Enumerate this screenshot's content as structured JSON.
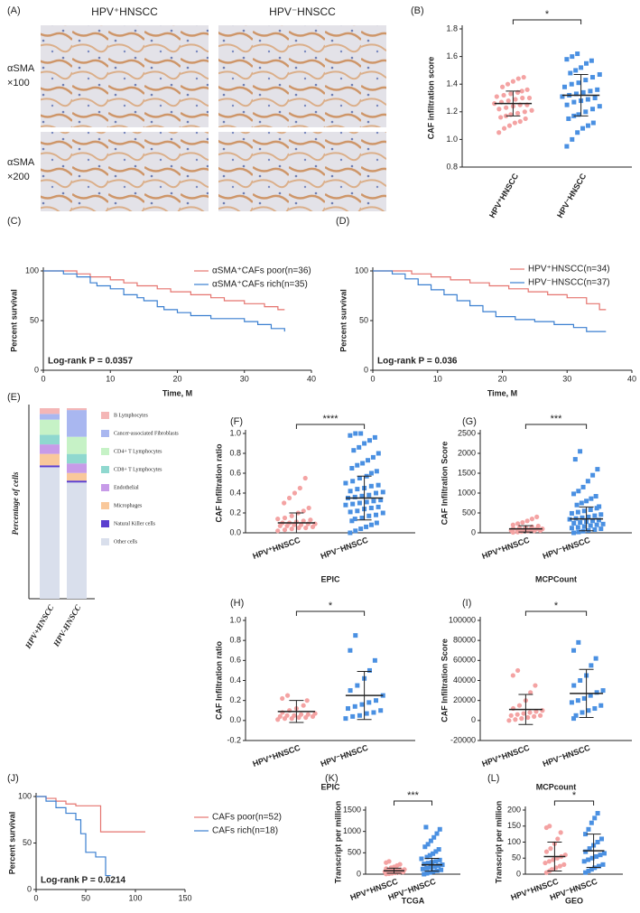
{
  "panel_a": {
    "label": "(A)",
    "columns": [
      "HPV⁺HNSCC",
      "HPV⁻HNSCC"
    ],
    "rows": [
      [
        "αSMA",
        "×100"
      ],
      [
        "αSMA",
        "×200"
      ]
    ]
  },
  "chart_data": [
    {
      "type": "dotplot",
      "panel_label": "(B)",
      "ylabel": "CAF infiltration score",
      "categories": [
        "HPV⁺HNSCC",
        "HPV⁻HNSCC"
      ],
      "significance": "*",
      "ylim": [
        0.8,
        1.8
      ],
      "yticks": [
        0.8,
        {
          "value": 1,
          "label": "1.0"
        },
        1.2,
        1.4,
        1.6,
        1.8
      ],
      "groups": [
        {
          "color": "#f4a3a3",
          "mean": 1.26,
          "sd": 0.09,
          "values": [
            1.05,
            1.08,
            1.1,
            1.12,
            1.13,
            1.15,
            1.16,
            1.17,
            1.18,
            1.19,
            1.2,
            1.21,
            1.22,
            1.23,
            1.24,
            1.25,
            1.25,
            1.26,
            1.27,
            1.28,
            1.29,
            1.3,
            1.3,
            1.31,
            1.32,
            1.33,
            1.34,
            1.35,
            1.36,
            1.38,
            1.4,
            1.42,
            1.44,
            1.45
          ]
        },
        {
          "color": "#4a90e2",
          "mean": 1.32,
          "sd": 0.15,
          "values": [
            0.95,
            1.0,
            1.05,
            1.08,
            1.1,
            1.12,
            1.15,
            1.17,
            1.18,
            1.2,
            1.22,
            1.24,
            1.25,
            1.27,
            1.28,
            1.29,
            1.3,
            1.31,
            1.32,
            1.33,
            1.34,
            1.35,
            1.36,
            1.38,
            1.4,
            1.41,
            1.43,
            1.45,
            1.47,
            1.48,
            1.5,
            1.52,
            1.55,
            1.57,
            1.58,
            1.6,
            1.62
          ]
        }
      ]
    },
    {
      "type": "km",
      "panel_label": "(C)",
      "xlabel": "Time, M",
      "ylabel": "Percent survival",
      "annotation": "Log-rank P = 0.0357",
      "xlim": [
        0,
        40
      ],
      "xticks": [
        0,
        10,
        20,
        30,
        40
      ],
      "ylim": [
        0,
        100
      ],
      "yticks": [
        0,
        50,
        100
      ],
      "series": [
        {
          "name": "αSMA⁺CAFs poor(n=36)",
          "color": "#e5746f",
          "x": [
            0,
            5,
            7,
            10,
            12,
            14,
            17,
            19,
            22,
            25,
            27,
            30,
            33,
            35,
            36
          ],
          "values": [
            100,
            97,
            94,
            91,
            88,
            85,
            82,
            79,
            76,
            73,
            70,
            67,
            64,
            61,
            61
          ]
        },
        {
          "name": "αSMA⁺CAFs rich(n=35)",
          "color": "#3a7fd0",
          "x": [
            0,
            3,
            5,
            7,
            8,
            10,
            12,
            14,
            15,
            17,
            18,
            20,
            22,
            25,
            28,
            30,
            32,
            34,
            36
          ],
          "values": [
            100,
            97,
            94,
            88,
            85,
            82,
            76,
            73,
            70,
            64,
            61,
            58,
            55,
            52,
            52,
            49,
            46,
            42,
            39
          ]
        }
      ]
    },
    {
      "type": "km",
      "panel_label": "(D)",
      "xlabel": "Time, M",
      "ylabel": "Percent survival",
      "annotation": "Log-rank P = 0.036",
      "xlim": [
        0,
        40
      ],
      "xticks": [
        0,
        10,
        20,
        30,
        40
      ],
      "ylim": [
        0,
        100
      ],
      "yticks": [
        0,
        50,
        100
      ],
      "series": [
        {
          "name": "HPV⁺HNSCC(n=34)",
          "color": "#e5746f",
          "x": [
            0,
            6,
            9,
            12,
            15,
            18,
            21,
            24,
            27,
            30,
            33,
            35,
            36
          ],
          "values": [
            100,
            97,
            94,
            91,
            88,
            85,
            82,
            79,
            76,
            73,
            67,
            61,
            61
          ]
        },
        {
          "name": "HPV⁻HNSCC(n=37)",
          "color": "#3a7fd0",
          "x": [
            0,
            3,
            5,
            7,
            9,
            11,
            13,
            15,
            17,
            19,
            22,
            25,
            28,
            31,
            33,
            36
          ],
          "values": [
            100,
            97,
            92,
            86,
            81,
            76,
            70,
            65,
            59,
            54,
            51,
            49,
            46,
            43,
            39,
            39
          ]
        }
      ]
    },
    {
      "type": "stacked",
      "panel_label": "(E)",
      "ylabel": "Percentage of cells",
      "categories": [
        "HPV+HNSCC",
        "HPV-HNSCC"
      ],
      "ylim": [
        0,
        100
      ],
      "series": [
        {
          "name": "B Lymphocytes",
          "color": "#f4b6b6",
          "values": [
            3,
            1
          ]
        },
        {
          "name": "Cancer-associated Fibroblasts",
          "color": "#a9b7f0",
          "values": [
            3,
            14
          ]
        },
        {
          "name": "CD4+ T Lymphocytes",
          "color": "#c6f2c6",
          "values": [
            8,
            9
          ]
        },
        {
          "name": "CD8+ T Lymphocytes",
          "color": "#8fd8cf",
          "values": [
            5,
            5
          ]
        },
        {
          "name": "Endothelial",
          "color": "#c79be8",
          "values": [
            5,
            5
          ]
        },
        {
          "name": "Microphages",
          "color": "#f9c89b",
          "values": [
            6,
            4
          ]
        },
        {
          "name": "Natural Killer cells",
          "color": "#5b3fcf",
          "values": [
            1,
            1
          ]
        },
        {
          "name": "Other cells",
          "color": "#d9dfec",
          "values": [
            69,
            61
          ]
        }
      ]
    },
    {
      "type": "dotplot",
      "panel_label": "(F)",
      "xlabel": "EPIC",
      "ylabel": "CAF Infiltration ratio",
      "categories": [
        "HPV⁺HNSCC",
        "HPV⁻HNSCC"
      ],
      "significance": "****",
      "ylim": [
        0,
        1
      ],
      "yticks": [
        {
          "value": 0,
          "label": "0.0"
        },
        0.2,
        0.4,
        0.6,
        0.8,
        {
          "value": 1,
          "label": "1.0"
        }
      ],
      "groups": [
        {
          "color": "#f4a3a3",
          "mean": 0.1,
          "sd": 0.1,
          "values": [
            0.02,
            0.03,
            0.04,
            0.05,
            0.05,
            0.06,
            0.07,
            0.07,
            0.08,
            0.08,
            0.09,
            0.09,
            0.1,
            0.1,
            0.11,
            0.12,
            0.13,
            0.14,
            0.15,
            0.17,
            0.2,
            0.22,
            0.25,
            0.3,
            0.35,
            0.4,
            0.45,
            0.55
          ]
        },
        {
          "color": "#4a90e2",
          "mean": 0.35,
          "sd": 0.22,
          "values": [
            0.0,
            0.02,
            0.04,
            0.06,
            0.08,
            0.1,
            0.12,
            0.14,
            0.15,
            0.17,
            0.18,
            0.2,
            0.21,
            0.22,
            0.24,
            0.25,
            0.26,
            0.28,
            0.29,
            0.3,
            0.31,
            0.32,
            0.33,
            0.35,
            0.36,
            0.37,
            0.38,
            0.4,
            0.41,
            0.42,
            0.44,
            0.45,
            0.47,
            0.48,
            0.5,
            0.52,
            0.55,
            0.57,
            0.6,
            0.62,
            0.65,
            0.68,
            0.7,
            0.73,
            0.76,
            0.8,
            0.83,
            0.86,
            0.9,
            0.93,
            0.96,
            0.98,
            1.0,
            1.0
          ]
        }
      ]
    },
    {
      "type": "dotplot",
      "panel_label": "(G)",
      "xlabel": "MCPCount",
      "ylabel": "CAF Infiltration Score",
      "categories": [
        "HPV⁺HNSCC",
        "HPV⁻HNSCC"
      ],
      "significance": "***",
      "ylim": [
        0,
        2500
      ],
      "yticks": [
        0,
        500,
        1000,
        1500,
        2000,
        2500
      ],
      "groups": [
        {
          "color": "#f4a3a3",
          "mean": 100,
          "sd": 80,
          "values": [
            10,
            20,
            30,
            40,
            50,
            55,
            60,
            70,
            75,
            80,
            90,
            100,
            110,
            120,
            130,
            150,
            170,
            200,
            230,
            260,
            300,
            350,
            400
          ]
        },
        {
          "color": "#4a90e2",
          "mean": 350,
          "sd": 300,
          "values": [
            0,
            20,
            40,
            60,
            80,
            100,
            120,
            140,
            160,
            180,
            200,
            220,
            240,
            260,
            280,
            300,
            320,
            340,
            360,
            380,
            400,
            430,
            460,
            490,
            520,
            550,
            580,
            620,
            660,
            700,
            750,
            800,
            860,
            920,
            980,
            1050,
            1150,
            1300,
            1450,
            1600,
            1850,
            2050
          ]
        }
      ]
    },
    {
      "type": "dotplot",
      "panel_label": "(H)",
      "xlabel": "EPIC",
      "ylabel": "CAF Infiltration ratio",
      "categories": [
        "HPV⁺HNSCC",
        "HPV⁻HNSCC"
      ],
      "significance": "*",
      "ylim": [
        -0.2,
        1
      ],
      "yticks": [
        -0.2,
        {
          "value": 0,
          "label": "0.0"
        },
        0.2,
        0.4,
        0.6,
        0.8,
        {
          "value": 1,
          "label": "1.0"
        }
      ],
      "groups": [
        {
          "color": "#f4a3a3",
          "mean": 0.09,
          "sd": 0.11,
          "values": [
            0.01,
            0.02,
            0.02,
            0.03,
            0.03,
            0.04,
            0.04,
            0.05,
            0.05,
            0.06,
            0.06,
            0.07,
            0.08,
            0.1,
            0.12,
            0.15,
            0.2,
            0.22,
            0.25
          ]
        },
        {
          "color": "#4a90e2",
          "mean": 0.25,
          "sd": 0.24,
          "values": [
            0.02,
            0.04,
            0.05,
            0.07,
            0.08,
            0.1,
            0.12,
            0.14,
            0.16,
            0.18,
            0.2,
            0.25,
            0.3,
            0.35,
            0.42,
            0.5,
            0.6,
            0.7,
            0.85
          ]
        }
      ]
    },
    {
      "type": "dotplot",
      "panel_label": "(I)",
      "xlabel": "MCPcount",
      "ylabel": "CAF Infiltration Score",
      "categories": [
        "HPV⁺HNSCC",
        "HPV⁻HNSCC"
      ],
      "significance": "*",
      "ylim": [
        -20000,
        100000
      ],
      "yticks": [
        -20000,
        0,
        20000,
        40000,
        60000,
        80000,
        100000
      ],
      "groups": [
        {
          "color": "#f4a3a3",
          "mean": 11000,
          "sd": 15000,
          "values": [
            0,
            1000,
            2000,
            3000,
            4000,
            5000,
            5000,
            6000,
            7000,
            8000,
            9000,
            10000,
            12000,
            15000,
            20000,
            28000,
            35000,
            45000,
            50000
          ]
        },
        {
          "color": "#4a90e2",
          "mean": 27000,
          "sd": 24000,
          "values": [
            2000,
            5000,
            8000,
            10000,
            12000,
            15000,
            18000,
            20000,
            22000,
            25000,
            28000,
            30000,
            35000,
            40000,
            45000,
            55000,
            62000,
            70000,
            78000
          ]
        }
      ]
    },
    {
      "type": "km",
      "panel_label": "(J)",
      "ylabel": "Percent survival",
      "annotation": "Log-rank P = 0.0214",
      "xlim": [
        0,
        150
      ],
      "xticks": [
        0,
        50,
        100,
        150
      ],
      "ylim": [
        0,
        100
      ],
      "yticks": [
        0,
        50,
        100
      ],
      "series": [
        {
          "name": "CAFs poor(n=52)",
          "color": "#e5746f",
          "x": [
            0,
            10,
            20,
            30,
            40,
            60,
            65,
            100,
            110
          ],
          "values": [
            100,
            98,
            95,
            92,
            90,
            90,
            62,
            62,
            62
          ]
        },
        {
          "name": "CAFs rich(n=18)",
          "color": "#3a7fd0",
          "x": [
            0,
            10,
            20,
            30,
            40,
            45,
            50,
            60,
            70,
            75
          ],
          "values": [
            100,
            95,
            88,
            82,
            75,
            60,
            40,
            35,
            15,
            15
          ]
        }
      ]
    },
    {
      "type": "dotplot",
      "panel_label": "(K)",
      "xlabel": "TCGA",
      "ylabel": "Transcript per million",
      "categories": [
        "HPV⁺HNSCC",
        "HPV⁻HNSCC"
      ],
      "significance": "***",
      "ylim": [
        0,
        1500
      ],
      "yticks": [
        0,
        500,
        1000,
        1500
      ],
      "groups": [
        {
          "color": "#f4a3a3",
          "mean": 80,
          "sd": 60,
          "values": [
            5,
            10,
            20,
            30,
            40,
            50,
            60,
            70,
            80,
            90,
            100,
            110,
            130,
            150,
            170,
            200,
            230,
            270,
            300
          ]
        },
        {
          "color": "#4a90e2",
          "mean": 220,
          "sd": 150,
          "values": [
            0,
            20,
            40,
            60,
            80,
            100,
            120,
            140,
            160,
            180,
            200,
            220,
            240,
            260,
            280,
            300,
            330,
            360,
            400,
            440,
            480,
            530,
            580,
            640,
            700,
            780,
            860,
            950,
            1050,
            1100
          ]
        }
      ]
    },
    {
      "type": "dotplot",
      "panel_label": "(L)",
      "xlabel": "GEO",
      "ylabel": "Transcript per million",
      "categories": [
        "HPV⁺HNSCC",
        "HPV⁻HNSCC"
      ],
      "significance": "*",
      "ylim": [
        0,
        200
      ],
      "yticks": [
        0,
        50,
        100,
        150,
        200
      ],
      "groups": [
        {
          "color": "#f4a3a3",
          "mean": 55,
          "sd": 45,
          "values": [
            5,
            10,
            15,
            20,
            25,
            30,
            35,
            40,
            45,
            50,
            55,
            60,
            70,
            80,
            95,
            110,
            130,
            145,
            150
          ]
        },
        {
          "color": "#4a90e2",
          "mean": 73,
          "sd": 52,
          "values": [
            5,
            10,
            15,
            20,
            25,
            30,
            40,
            45,
            50,
            55,
            60,
            65,
            70,
            80,
            90,
            100,
            110,
            125,
            140,
            160,
            175,
            190
          ]
        }
      ]
    }
  ]
}
